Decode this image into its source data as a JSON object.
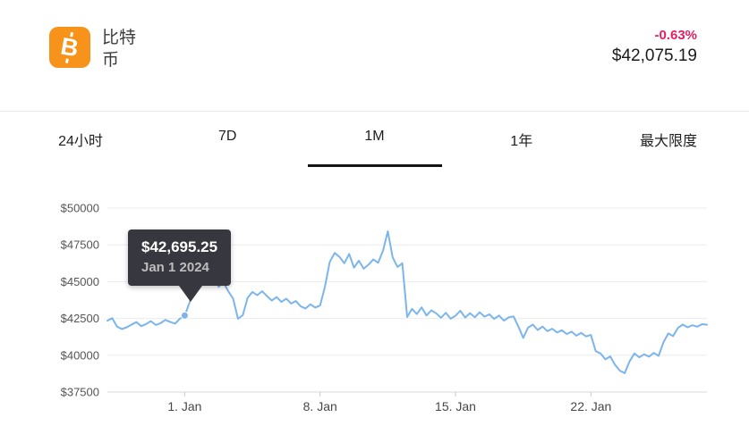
{
  "header": {
    "coin_name": "比特币",
    "icon_symbol": "B",
    "icon_color": "#f7931a",
    "change_percent": "-0.63%",
    "change_color": "#e61e63",
    "price": "$42,075.19"
  },
  "tabs": [
    {
      "label": "24小时",
      "active": false
    },
    {
      "label": "7D",
      "active": false
    },
    {
      "label": "1M",
      "active": true
    },
    {
      "label": "1年",
      "active": false
    },
    {
      "label": "最大限度",
      "active": false
    }
  ],
  "tooltip": {
    "price": "$42,695.25",
    "date": "Jan 1 2024"
  },
  "chart_data": {
    "type": "line",
    "title": "",
    "xlabel": "",
    "ylabel": "",
    "line_color": "#7cb5ec",
    "grid": true,
    "ylim": [
      37500,
      50000
    ],
    "y_ticks": [
      {
        "value": 37500,
        "label": "$37500"
      },
      {
        "value": 40000,
        "label": "$40000"
      },
      {
        "value": 42500,
        "label": "$42500"
      },
      {
        "value": 45000,
        "label": "$45000"
      },
      {
        "value": 47500,
        "label": "$47500"
      },
      {
        "value": 50000,
        "label": "$50000"
      }
    ],
    "x_ticks": [
      {
        "label": "1. Jan",
        "pos": 0.129
      },
      {
        "label": "8. Jan",
        "pos": 0.3548
      },
      {
        "label": "15. Jan",
        "pos": 0.5806
      },
      {
        "label": "22. Jan",
        "pos": 0.8065
      }
    ],
    "tooltip_point": {
      "x_fraction": 0.129,
      "value": 42695.25,
      "price_label": "$42,695.25",
      "date_label": "Jan 1 2024"
    },
    "values": [
      42350,
      42520,
      41950,
      41780,
      41900,
      42080,
      42250,
      41980,
      42120,
      42320,
      42060,
      42180,
      42400,
      42260,
      42150,
      42480,
      42695,
      43600,
      44750,
      45400,
      45880,
      45150,
      45550,
      44650,
      44950,
      44350,
      43850,
      42480,
      42720,
      43900,
      44300,
      44080,
      44350,
      44020,
      43720,
      43950,
      43620,
      43850,
      43520,
      43680,
      43320,
      43180,
      43460,
      43240,
      43380,
      44650,
      46350,
      46950,
      46680,
      46250,
      46880,
      45950,
      46420,
      45880,
      46150,
      46520,
      46280,
      47100,
      48420,
      46650,
      46000,
      46250,
      42600,
      43150,
      42800,
      43250,
      42700,
      43050,
      42850,
      42550,
      42880,
      42480,
      42680,
      43020,
      42560,
      42860,
      42580,
      42920,
      42620,
      42780,
      42470,
      42700,
      42350,
      42580,
      42640,
      41950,
      41180,
      41880,
      42080,
      41720,
      41950,
      41640,
      41800,
      41540,
      41700,
      41440,
      41600,
      41330,
      41520,
      41280,
      41380,
      40280,
      40120,
      39720,
      39920,
      39350,
      38950,
      38780,
      39580,
      40120,
      39860,
      40060,
      39900,
      40160,
      39960,
      40880,
      41480,
      41300,
      41860,
      42080,
      41900,
      42040,
      41940,
      42110,
      42075
    ]
  }
}
